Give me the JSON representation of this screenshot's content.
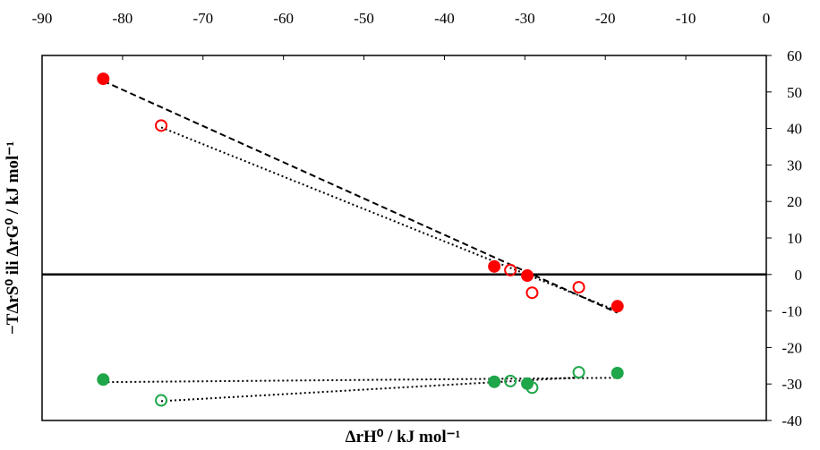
{
  "chart_data": {
    "type": "scatter",
    "title": "",
    "xlabel": "ΔrH⁰ / kJ mol⁻¹",
    "ylabel": "−TΔrS⁰ ili ΔrG⁰ / kJ mol⁻¹",
    "xlim": [
      -90,
      0
    ],
    "ylim": [
      -40,
      60
    ],
    "x_ticks": [
      "-90",
      "-80",
      "-70",
      "-60",
      "-50",
      "-40",
      "-30",
      "-20",
      "-10",
      "0"
    ],
    "y_ticks": [
      "60",
      "50",
      "40",
      "30",
      "20",
      "10",
      "0",
      "-10",
      "-20",
      "-30",
      "-40"
    ],
    "x_axis_position": "top",
    "y_axis_position": "right",
    "grid": false,
    "zero_line": true,
    "series": [
      {
        "marker": "filled",
        "color": "#ff0000",
        "x": [
          -82.4,
          -33.8,
          -29.7,
          -18.5
        ],
        "y": [
          53.6,
          2.2,
          -0.3,
          -8.7
        ],
        "fit": {
          "style": "dashed",
          "x": [
            -82.4,
            -18.5
          ],
          "y": [
            53.0,
            -10.5
          ]
        }
      },
      {
        "marker": "open",
        "color": "#ff0000",
        "x": [
          -75.2,
          -31.8,
          -29.1,
          -23.3
        ],
        "y": [
          40.8,
          1.2,
          -5.0,
          -3.5
        ],
        "fit": {
          "style": "dotted",
          "x": [
            -75.2,
            -18.5
          ],
          "y": [
            40.3,
            -10.0
          ]
        }
      },
      {
        "marker": "filled",
        "color": "#1fa64a",
        "x": [
          -82.4,
          -33.8,
          -29.7,
          -18.5
        ],
        "y": [
          -28.8,
          -29.4,
          -29.9,
          -27.0
        ],
        "fit": {
          "style": "dotted",
          "x": [
            -82.4,
            -18.5
          ],
          "y": [
            -29.5,
            -28.3
          ]
        }
      },
      {
        "marker": "open",
        "color": "#1fa64a",
        "x": [
          -75.2,
          -31.8,
          -29.1,
          -23.3
        ],
        "y": [
          -34.5,
          -29.2,
          -31.0,
          -26.8
        ],
        "fit": {
          "style": "dotted",
          "x": [
            -75.2,
            -23.3
          ],
          "y": [
            -34.7,
            -28.2
          ]
        }
      }
    ]
  }
}
